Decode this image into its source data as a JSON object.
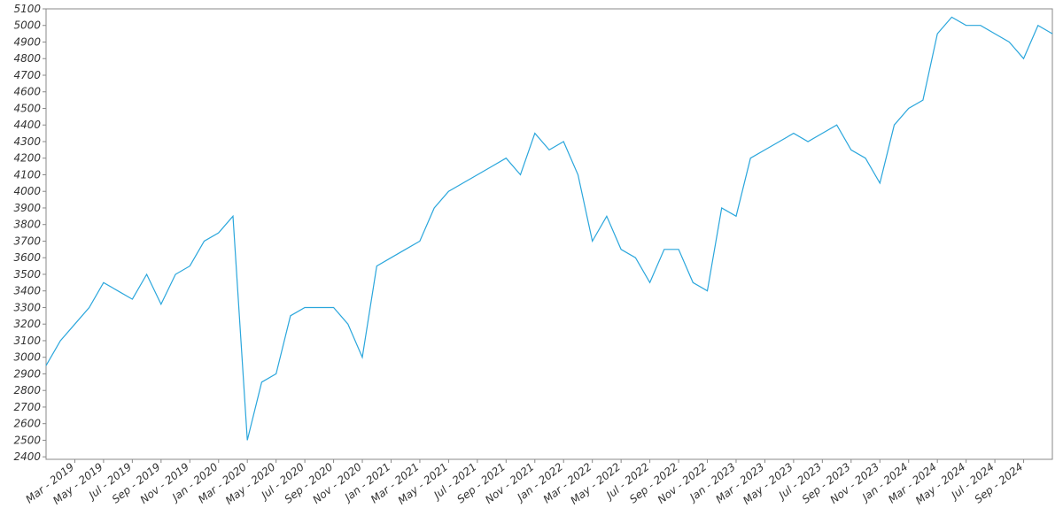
{
  "chart_data": {
    "type": "line",
    "x": [
      "2019-01",
      "2019-02",
      "2019-03",
      "2019-04",
      "2019-05",
      "2019-06",
      "2019-07",
      "2019-08",
      "2019-09",
      "2019-10",
      "2019-11",
      "2019-12",
      "2020-01",
      "2020-02",
      "2020-03",
      "2020-04",
      "2020-05",
      "2020-06",
      "2020-07",
      "2020-08",
      "2020-09",
      "2020-10",
      "2020-11",
      "2020-12",
      "2021-01",
      "2021-02",
      "2021-03",
      "2021-04",
      "2021-05",
      "2021-06",
      "2021-07",
      "2021-08",
      "2021-09",
      "2021-10",
      "2021-11",
      "2021-12",
      "2022-01",
      "2022-02",
      "2022-03",
      "2022-04",
      "2022-05",
      "2022-06",
      "2022-07",
      "2022-08",
      "2022-09",
      "2022-10",
      "2022-11",
      "2022-12",
      "2023-01",
      "2023-02",
      "2023-03",
      "2023-04",
      "2023-05",
      "2023-06",
      "2023-07",
      "2023-08",
      "2023-09",
      "2023-10",
      "2023-11",
      "2023-12",
      "2024-01",
      "2024-02",
      "2024-03",
      "2024-04",
      "2024-05",
      "2024-06",
      "2024-07",
      "2024-08",
      "2024-09",
      "2024-10",
      "2024-11"
    ],
    "series": [
      {
        "color": "#2aa6dc",
        "values": [
          2950,
          3100,
          3200,
          3300,
          3450,
          3400,
          3350,
          3500,
          3320,
          3500,
          3550,
          3700,
          3750,
          3850,
          2500,
          2850,
          2900,
          3250,
          3300,
          3300,
          3300,
          3200,
          3000,
          3550,
          3600,
          3650,
          3700,
          3900,
          4000,
          4050,
          4100,
          4150,
          4200,
          4100,
          4350,
          4250,
          4300,
          4100,
          3700,
          3850,
          3650,
          3600,
          3450,
          3650,
          3650,
          3450,
          3400,
          3900,
          3850,
          4200,
          4250,
          4300,
          4350,
          4300,
          4350,
          4400,
          4250,
          4200,
          4050,
          4400,
          4500,
          4550,
          4950,
          5050,
          5000,
          5000,
          4950,
          4900,
          4800,
          5000,
          4950
        ]
      }
    ],
    "xlim": [
      "2019-01",
      "2024-11"
    ],
    "xticks": [
      {
        "value": "2019-03",
        "label": "Mar - 2019"
      },
      {
        "value": "2019-05",
        "label": "May - 2019"
      },
      {
        "value": "2019-07",
        "label": "Jul - 2019"
      },
      {
        "value": "2019-09",
        "label": "Sep - 2019"
      },
      {
        "value": "2019-11",
        "label": "Nov - 2019"
      },
      {
        "value": "2020-01",
        "label": "Jan - 2020"
      },
      {
        "value": "2020-03",
        "label": "Mar - 2020"
      },
      {
        "value": "2020-05",
        "label": "May - 2020"
      },
      {
        "value": "2020-07",
        "label": "Jul - 2020"
      },
      {
        "value": "2020-09",
        "label": "Sep - 2020"
      },
      {
        "value": "2020-11",
        "label": "Nov - 2020"
      },
      {
        "value": "2021-01",
        "label": "Jan - 2021"
      },
      {
        "value": "2021-03",
        "label": "Mar - 2021"
      },
      {
        "value": "2021-05",
        "label": "May - 2021"
      },
      {
        "value": "2021-07",
        "label": "Jul - 2021"
      },
      {
        "value": "2021-09",
        "label": "Sep - 2021"
      },
      {
        "value": "2021-11",
        "label": "Nov - 2021"
      },
      {
        "value": "2022-01",
        "label": "Jan - 2022"
      },
      {
        "value": "2022-03",
        "label": "Mar - 2022"
      },
      {
        "value": "2022-05",
        "label": "May - 2022"
      },
      {
        "value": "2022-07",
        "label": "Jul - 2022"
      },
      {
        "value": "2022-09",
        "label": "Sep - 2022"
      },
      {
        "value": "2022-11",
        "label": "Nov - 2022"
      },
      {
        "value": "2023-01",
        "label": "Jan - 2023"
      },
      {
        "value": "2023-03",
        "label": "Mar - 2023"
      },
      {
        "value": "2023-05",
        "label": "May - 2023"
      },
      {
        "value": "2023-07",
        "label": "Jul - 2023"
      },
      {
        "value": "2023-09",
        "label": "Sep - 2023"
      },
      {
        "value": "2023-11",
        "label": "Nov - 2023"
      },
      {
        "value": "2024-01",
        "label": "Jan - 2024"
      },
      {
        "value": "2024-03",
        "label": "Mar - 2024"
      },
      {
        "value": "2024-05",
        "label": "May - 2024"
      },
      {
        "value": "2024-07",
        "label": "Jul - 2024"
      },
      {
        "value": "2024-09",
        "label": "Sep - 2024"
      }
    ],
    "ylim": [
      2385,
      5100
    ],
    "yticks": [
      2400,
      2500,
      2600,
      2700,
      2800,
      2900,
      3000,
      3100,
      3200,
      3300,
      3400,
      3500,
      3600,
      3700,
      3800,
      3900,
      4000,
      4100,
      4200,
      4300,
      4400,
      4500,
      4600,
      4700,
      4800,
      4900,
      5000,
      5100
    ]
  }
}
